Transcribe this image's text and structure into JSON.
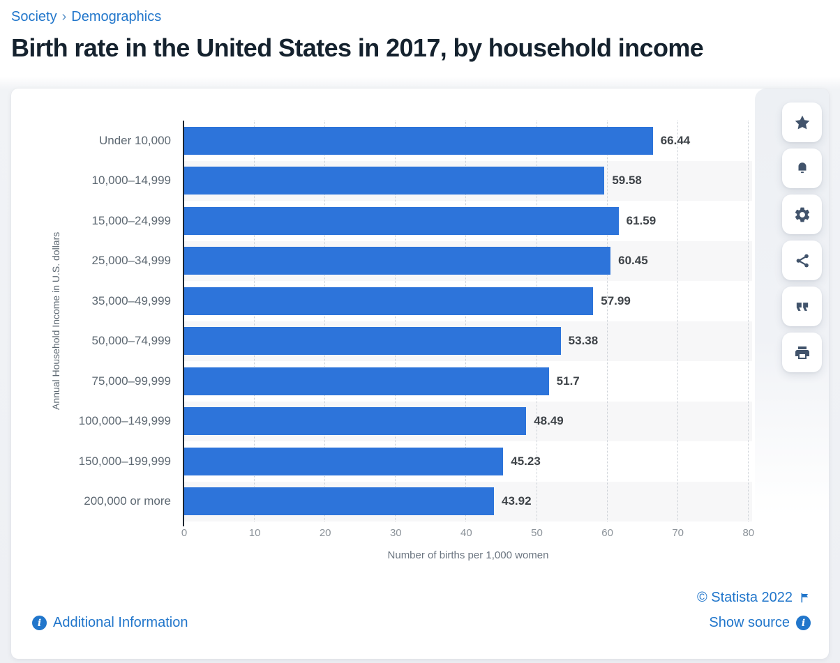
{
  "breadcrumb": {
    "items": [
      "Society",
      "Demographics"
    ],
    "separator": "›"
  },
  "title": "Birth rate in the United States in 2017, by household income",
  "chart_data": {
    "type": "bar",
    "orientation": "horizontal",
    "title": "Birth rate in the United States in 2017, by household income",
    "categories": [
      "Under 10,000",
      "10,000–14,999",
      "15,000–24,999",
      "25,000–34,999",
      "35,000–49,999",
      "50,000–74,999",
      "75,000–99,999",
      "100,000–149,999",
      "150,000–199,999",
      "200,000 or more"
    ],
    "values": [
      66.44,
      59.58,
      61.59,
      60.45,
      57.99,
      53.38,
      51.7,
      48.49,
      45.23,
      43.92
    ],
    "value_labels": [
      "66.44",
      "59.58",
      "61.59",
      "60.45",
      "57.99",
      "53.38",
      "51.7",
      "48.49",
      "45.23",
      "43.92"
    ],
    "xlabel": "Number of births per 1,000 women",
    "ylabel": "Annual Household Income in U.S. dollars",
    "xlim": [
      0,
      80
    ],
    "xticks": [
      0,
      10,
      20,
      30,
      40,
      50,
      60,
      70,
      80
    ],
    "grid": "vertical-dotted",
    "legend": "none",
    "bar_color": "#2D74DA",
    "stripe_color": "#f7f7f8"
  },
  "toolbar": {
    "buttons": [
      {
        "name": "favorite",
        "icon": "star-icon"
      },
      {
        "name": "alerts",
        "icon": "bell-icon"
      },
      {
        "name": "settings",
        "icon": "gear-icon"
      },
      {
        "name": "share",
        "icon": "share-icon"
      },
      {
        "name": "cite",
        "icon": "quote-icon"
      },
      {
        "name": "print",
        "icon": "printer-icon"
      }
    ]
  },
  "footer": {
    "copyright": "© Statista 2022",
    "show_source": "Show source",
    "additional_information": "Additional Information"
  },
  "colors": {
    "link_blue": "#2176CB",
    "bar_blue": "#2D74DA",
    "title_navy": "#15222E",
    "icon_slate": "#41536B"
  }
}
